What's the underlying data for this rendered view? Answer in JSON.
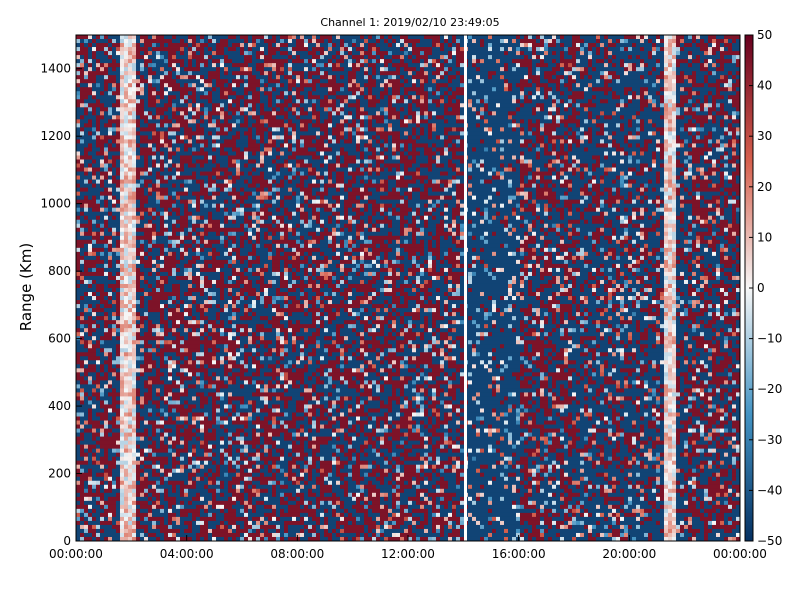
{
  "chart_data": {
    "type": "heatmap",
    "title": "Channel 1: 2019/02/10 23:49:05",
    "xlabel": "",
    "ylabel": "Range (Km)",
    "x_range": [
      "00:00:00",
      "24:00:00"
    ],
    "x_ticks": [
      "00:00:00",
      "04:00:00",
      "08:00:00",
      "12:00:00",
      "16:00:00",
      "20:00:00",
      "00:00:00"
    ],
    "y_range": [
      0,
      1500
    ],
    "y_ticks": [
      0,
      200,
      400,
      600,
      800,
      1000,
      1200,
      1400
    ],
    "colorbar": {
      "range": [
        -50,
        50
      ],
      "ticks": [
        -50,
        -40,
        -30,
        -20,
        -10,
        0,
        10,
        20,
        30,
        40,
        50
      ],
      "colormap": "red-white-blue (RdBu)"
    },
    "gap_time": "14:00:00",
    "grid": false
  },
  "colors": {
    "high": "#67001f",
    "mid_high": "#d6604d",
    "center": "#f7f7f7",
    "mid_low": "#4393c3",
    "low": "#053061",
    "axis": "#000000"
  }
}
